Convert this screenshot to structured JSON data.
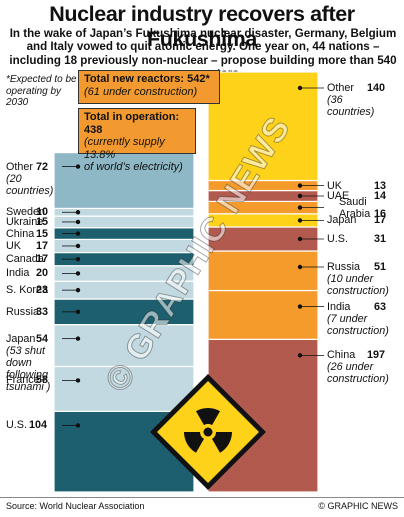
{
  "title": "Nuclear industry recovers after Fukushima",
  "intro": "In the wake of Japan’s Fukushima nuclear disaster, Germany, Belgium and Italy vowed to quit atomic energy. One year on, 44 nations – including 18 previously non-nuclear – propose building more than 540 new reactors",
  "footnote": "*Expected to be operating by 2030",
  "callout_new": {
    "title": "Total new reactors: 542*",
    "sub": "(61 under construction)"
  },
  "callout_oper": {
    "title": "Total in operation: 438",
    "sub1": "(currently supply 13.8%",
    "sub2": "of world’s electricity)"
  },
  "source": "Source: World Nuclear Association",
  "credit": "© GRAPHIC NEWS",
  "watermark": "© GRAPHIC NEWS",
  "colors": {
    "oper_dark": "#1d5f6e",
    "oper_light": "#c2d9e1",
    "oper_mid": "#8fb8c6",
    "new_yellow": "#ffd21a",
    "new_orange": "#f49b2b",
    "new_red": "#b35a4f",
    "warning_yellow": "#ffd21a"
  },
  "chart_data": [
    {
      "type": "bar",
      "stacked": true,
      "title": "Total in operation: 438",
      "categories": [
        "U.S.",
        "France",
        "Japan",
        "Russia",
        "S. Korea",
        "India",
        "Canada",
        "UK",
        "China",
        "Ukraine",
        "Sweden",
        "Other"
      ],
      "labels": [
        {
          "name": "U.S.",
          "note": ""
        },
        {
          "name": "France",
          "note": ""
        },
        {
          "name": "Japan",
          "note": "(53 shut down following tsunami )"
        },
        {
          "name": "Russia",
          "note": ""
        },
        {
          "name": "S. Korea",
          "note": ""
        },
        {
          "name": "India",
          "note": ""
        },
        {
          "name": "Canada",
          "note": ""
        },
        {
          "name": "UK",
          "note": ""
        },
        {
          "name": "China",
          "note": ""
        },
        {
          "name": "Ukraine",
          "note": ""
        },
        {
          "name": "Sweden",
          "note": ""
        },
        {
          "name": "Other",
          "note": "(20 countries)"
        }
      ],
      "values": [
        104,
        58,
        54,
        33,
        23,
        20,
        17,
        17,
        15,
        15,
        10,
        72
      ],
      "total": 438
    },
    {
      "type": "bar",
      "stacked": true,
      "title": "Total new reactors: 542*",
      "categories": [
        "China",
        "India",
        "Russia",
        "U.S.",
        "Japan",
        "Saudi Arabia",
        "UAE",
        "UK",
        "Other"
      ],
      "labels": [
        {
          "name": "China",
          "note": "(26 under construction)"
        },
        {
          "name": "India",
          "note": "(7 under construction)"
        },
        {
          "name": "Russia",
          "note": "(10 under construction)"
        },
        {
          "name": "U.S.",
          "note": ""
        },
        {
          "name": "Japan",
          "note": ""
        },
        {
          "name": "Saudi Arabia",
          "note": ""
        },
        {
          "name": "UAE",
          "note": ""
        },
        {
          "name": "UK",
          "note": ""
        },
        {
          "name": "Other",
          "note": "(36 countries)"
        }
      ],
      "values": [
        197,
        63,
        51,
        31,
        17,
        16,
        14,
        13,
        140
      ],
      "total": 542
    }
  ]
}
